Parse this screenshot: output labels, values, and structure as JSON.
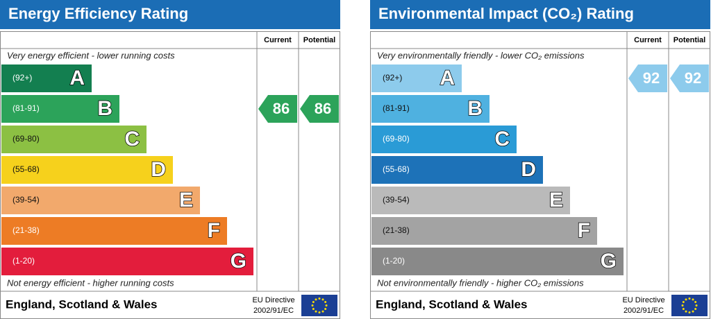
{
  "panels": [
    {
      "title": "Energy Efficiency Rating",
      "current_header": "Current",
      "potential_header": "Potential",
      "top_note": "Very energy efficient - lower running costs",
      "bottom_note": "Not energy efficient - higher running costs",
      "bands": [
        {
          "range": "(92+)",
          "letter": "A",
          "color": "#137f50"
        },
        {
          "range": "(81-91)",
          "letter": "B",
          "color": "#2ca35a"
        },
        {
          "range": "(69-80)",
          "letter": "C",
          "color": "#8cc043"
        },
        {
          "range": "(55-68)",
          "letter": "D",
          "color": "#f6d11c"
        },
        {
          "range": "(39-54)",
          "letter": "E",
          "color": "#f2a96c"
        },
        {
          "range": "(21-38)",
          "letter": "F",
          "color": "#ed7c25"
        },
        {
          "range": "(1-20)",
          "letter": "G",
          "color": "#e31d3c"
        }
      ],
      "current": 86,
      "potential": 86,
      "footer": "England, Scotland & Wales",
      "directive": "EU Directive",
      "directive_code": "2002/91/EC"
    },
    {
      "title": "Environmental Impact (CO₂) Rating",
      "current_header": "Current",
      "potential_header": "Potential",
      "top_note": "Very environmentally friendly - lower CO₂ emissions",
      "bottom_note": "Not environmentally friendly - higher CO₂ emissions",
      "bands": [
        {
          "range": "(92+)",
          "letter": "A",
          "color": "#8dcbec"
        },
        {
          "range": "(81-91)",
          "letter": "B",
          "color": "#4fb1e0"
        },
        {
          "range": "(69-80)",
          "letter": "C",
          "color": "#2a9bd6"
        },
        {
          "range": "(55-68)",
          "letter": "D",
          "color": "#1d72b8"
        },
        {
          "range": "(39-54)",
          "letter": "E",
          "color": "#bababa"
        },
        {
          "range": "(21-38)",
          "letter": "F",
          "color": "#a3a3a3"
        },
        {
          "range": "(1-20)",
          "letter": "G",
          "color": "#898989"
        }
      ],
      "current": 92,
      "potential": 92,
      "footer": "England, Scotland & Wales",
      "directive": "EU Directive",
      "directive_code": "2002/91/EC"
    }
  ]
}
